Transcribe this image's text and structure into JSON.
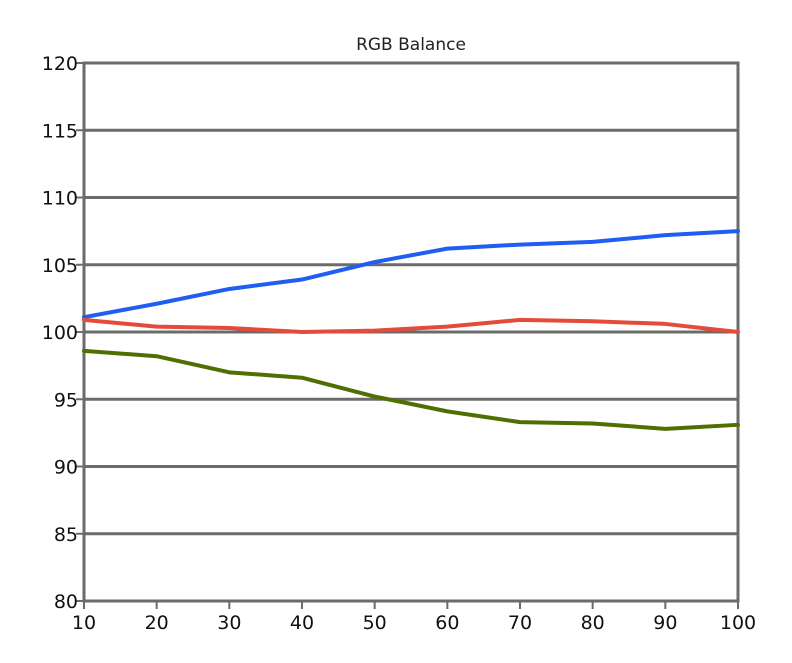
{
  "chart_data": {
    "type": "line",
    "title": "RGB Balance",
    "xlabel": "",
    "ylabel": "",
    "x": [
      10,
      20,
      30,
      40,
      50,
      60,
      70,
      80,
      90,
      100
    ],
    "xlim": [
      10,
      100
    ],
    "ylim": [
      80,
      120
    ],
    "xticks": [
      10,
      20,
      30,
      40,
      50,
      60,
      70,
      80,
      90,
      100
    ],
    "yticks": [
      80,
      85,
      90,
      95,
      100,
      105,
      110,
      115,
      120
    ],
    "grid": "horizontal",
    "legend": "none",
    "series": [
      {
        "color": "#1f5ef2",
        "values": [
          101.1,
          102.1,
          103.2,
          103.9,
          105.2,
          106.2,
          106.5,
          106.7,
          107.2,
          107.5
        ]
      },
      {
        "color": "#e64a3a",
        "values": [
          100.9,
          100.4,
          100.3,
          100.0,
          100.1,
          100.4,
          100.9,
          100.8,
          100.6,
          100.0
        ]
      },
      {
        "color": "#4f6f00",
        "values": [
          98.6,
          98.2,
          97.0,
          96.6,
          95.2,
          94.1,
          93.3,
          93.2,
          92.8,
          93.1
        ]
      }
    ]
  }
}
